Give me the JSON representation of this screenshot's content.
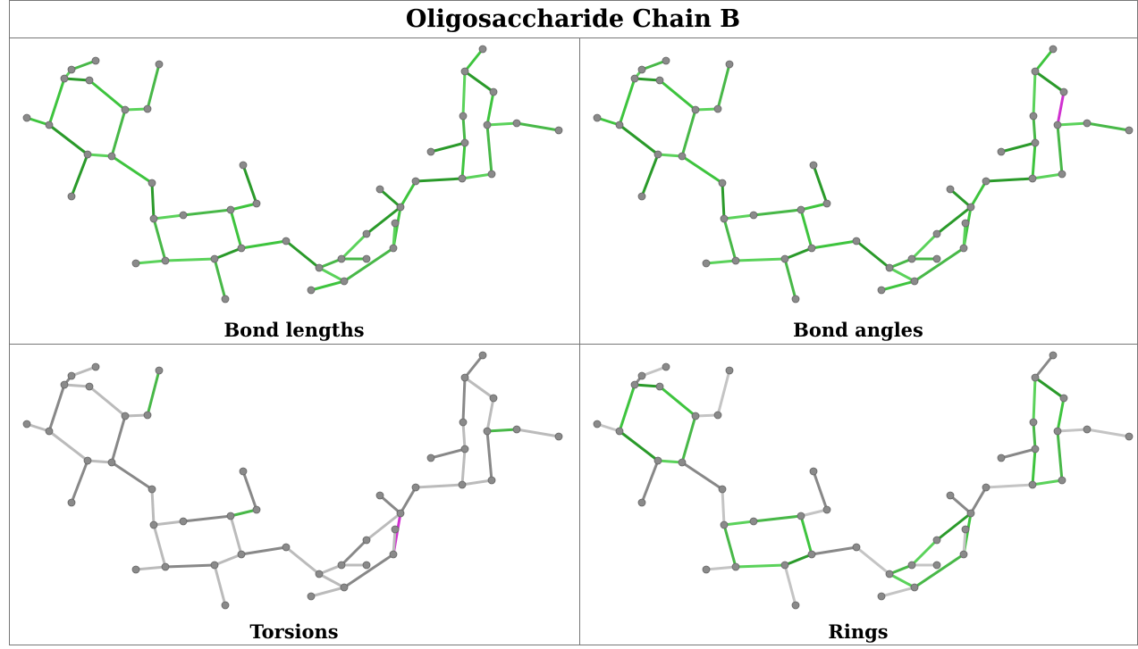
{
  "title": "Oligosaccharide Chain B",
  "panels": [
    {
      "caption": "Bond lengths"
    },
    {
      "caption": "Bond angles"
    },
    {
      "caption": "Torsions"
    },
    {
      "caption": "Rings"
    }
  ]
}
